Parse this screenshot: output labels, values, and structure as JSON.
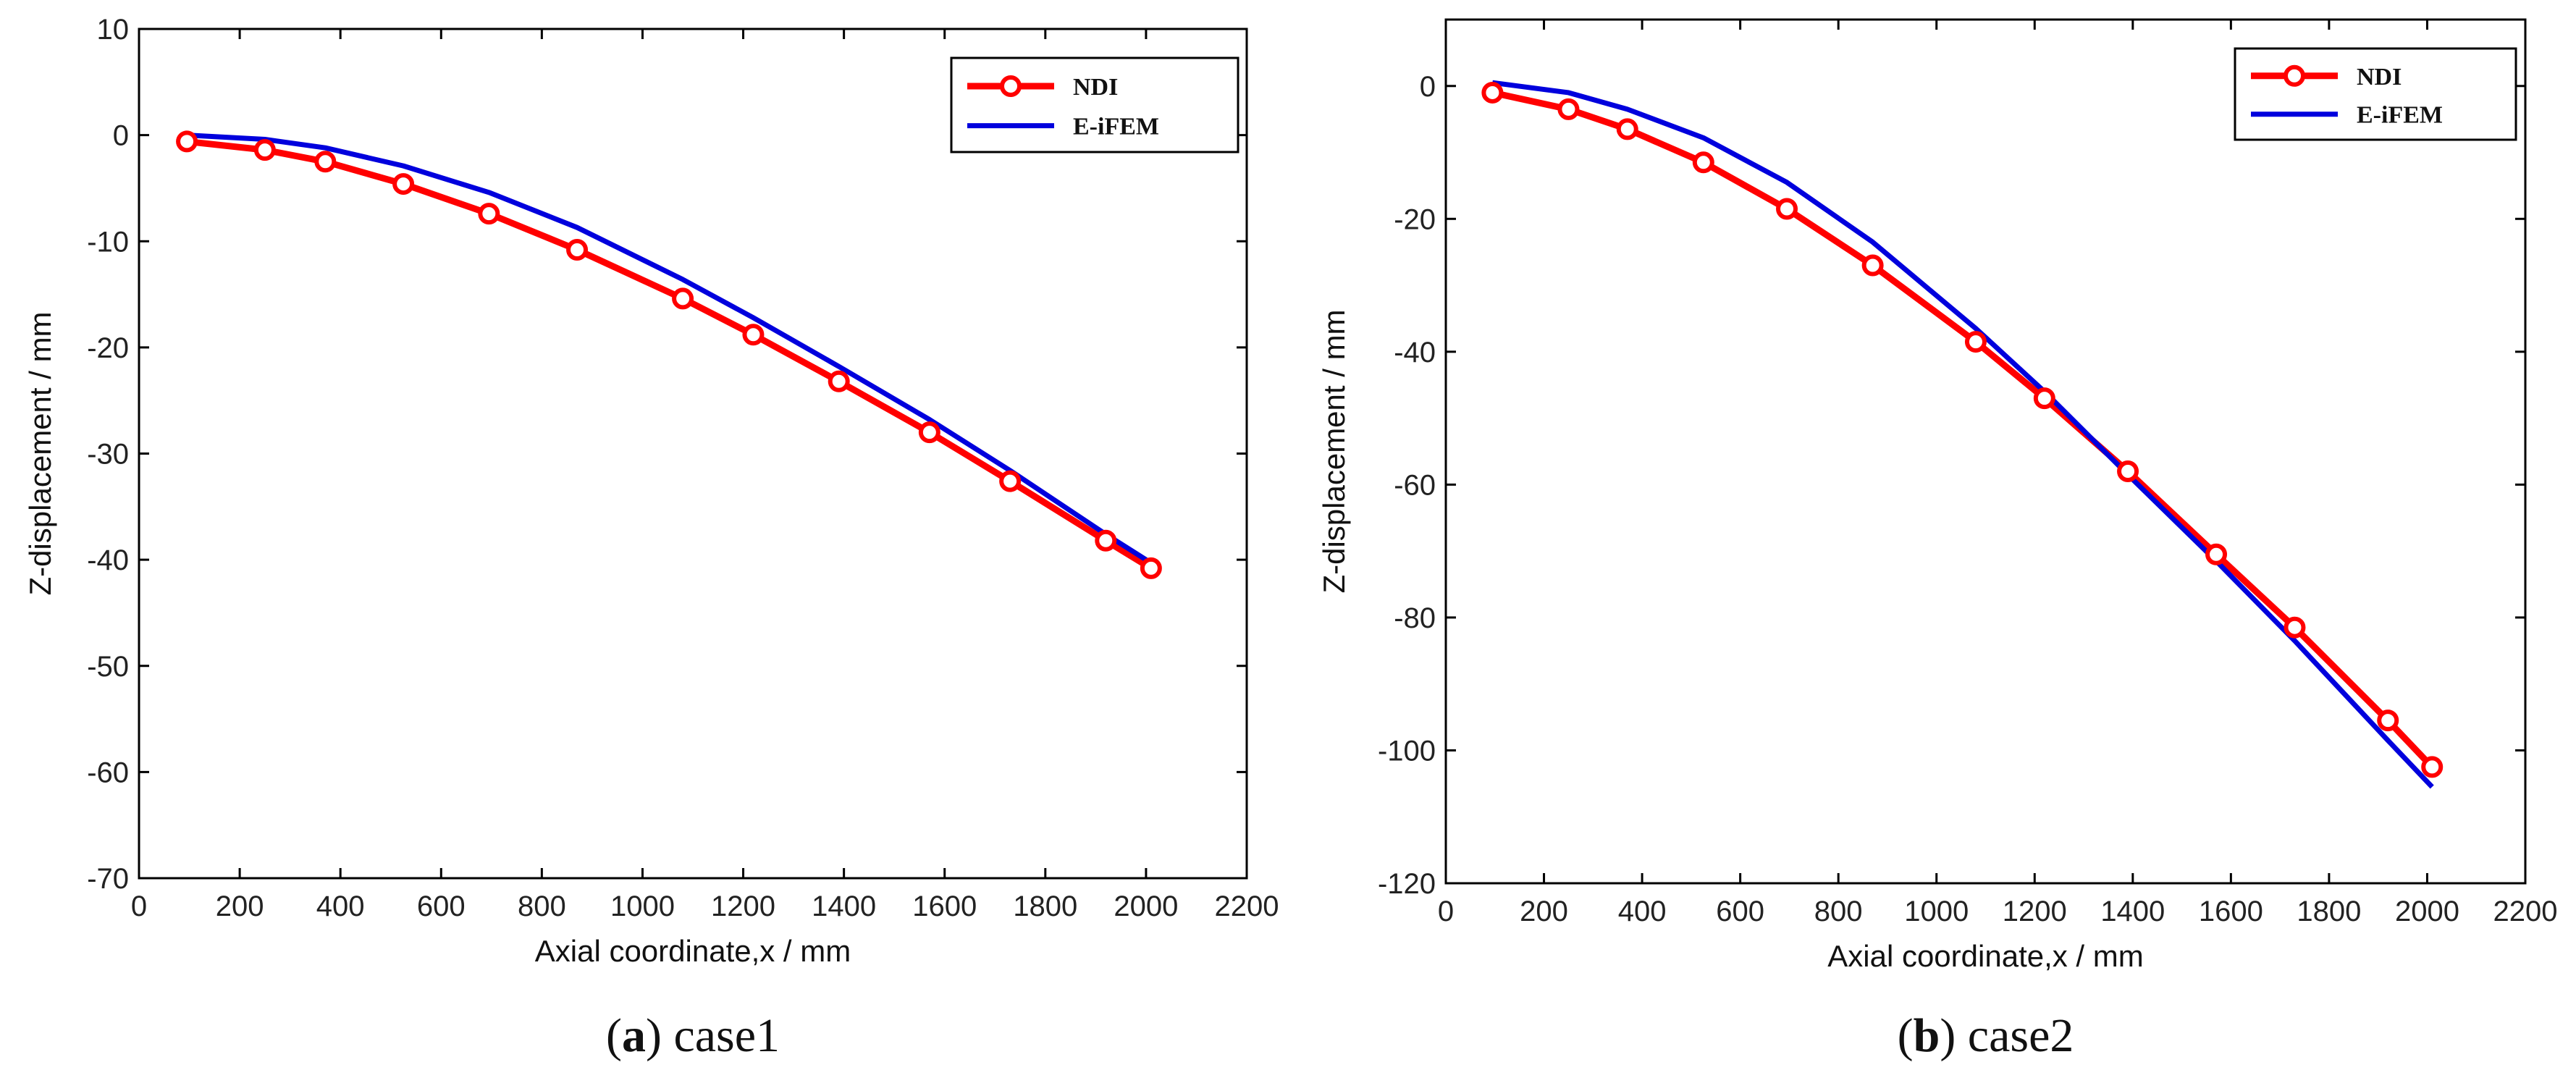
{
  "chart_data": [
    {
      "type": "line",
      "xlabel": "Axial coordinate,x / mm",
      "ylabel": "Z-displacement / mm",
      "xlim": [
        0,
        2200
      ],
      "ylim": [
        -70,
        10
      ],
      "xticks": [
        0,
        200,
        400,
        600,
        800,
        1000,
        1200,
        1400,
        1600,
        1800,
        2000,
        2200
      ],
      "yticks": [
        -70,
        -60,
        -50,
        -40,
        -30,
        -20,
        -10,
        0,
        10
      ],
      "grid": false,
      "legend_position": "top-right",
      "caption_letter": "a",
      "caption_text": " case1",
      "caption_open": "(",
      "caption_close": ")",
      "series": [
        {
          "name": "NDI",
          "color": "#ff0000",
          "marker": "circle",
          "x": [
            95,
            250,
            370,
            525,
            695,
            870,
            1080,
            1220,
            1390,
            1570,
            1730,
            1920,
            2010
          ],
          "y": [
            -0.6,
            -1.4,
            -2.5,
            -4.6,
            -7.4,
            -10.8,
            -15.4,
            -18.8,
            -23.2,
            -28.0,
            -32.6,
            -38.2,
            -40.8
          ]
        },
        {
          "name": "E-iFEM",
          "color": "#0000dd",
          "marker": "none",
          "x": [
            95,
            250,
            370,
            525,
            695,
            870,
            1080,
            1220,
            1390,
            1570,
            1730,
            1920,
            2010
          ],
          "y": [
            0.0,
            -0.4,
            -1.2,
            -2.9,
            -5.4,
            -8.7,
            -13.6,
            -17.2,
            -21.8,
            -26.8,
            -31.6,
            -37.6,
            -40.3
          ]
        }
      ]
    },
    {
      "type": "line",
      "xlabel": "Axial coordinate,x / mm",
      "ylabel": "Z-displacement / mm",
      "xlim": [
        0,
        2200
      ],
      "ylim": [
        -120,
        10
      ],
      "xticks": [
        0,
        200,
        400,
        600,
        800,
        1000,
        1200,
        1400,
        1600,
        1800,
        2000,
        2200
      ],
      "yticks": [
        -120,
        -100,
        -80,
        -60,
        -40,
        -20,
        0
      ],
      "grid": false,
      "legend_position": "top-right",
      "caption_letter": "b",
      "caption_text": " case2",
      "caption_open": "(",
      "caption_close": ")",
      "series": [
        {
          "name": "NDI",
          "color": "#ff0000",
          "marker": "circle",
          "x": [
            95,
            250,
            370,
            525,
            695,
            870,
            1080,
            1220,
            1390,
            1570,
            1730,
            1920,
            2010
          ],
          "y": [
            -1.0,
            -3.5,
            -6.5,
            -11.5,
            -18.5,
            -27.0,
            -38.5,
            -47.0,
            -58.0,
            -70.5,
            -81.5,
            -95.5,
            -102.5
          ]
        },
        {
          "name": "E-iFEM",
          "color": "#0000dd",
          "marker": "none",
          "x": [
            95,
            250,
            370,
            525,
            695,
            870,
            1080,
            1220,
            1390,
            1570,
            1730,
            1920,
            2010
          ],
          "y": [
            0.5,
            -1.0,
            -3.5,
            -7.8,
            -14.5,
            -23.5,
            -36.5,
            -46.0,
            -58.5,
            -71.5,
            -83.5,
            -98.5,
            -105.5
          ]
        }
      ]
    }
  ]
}
